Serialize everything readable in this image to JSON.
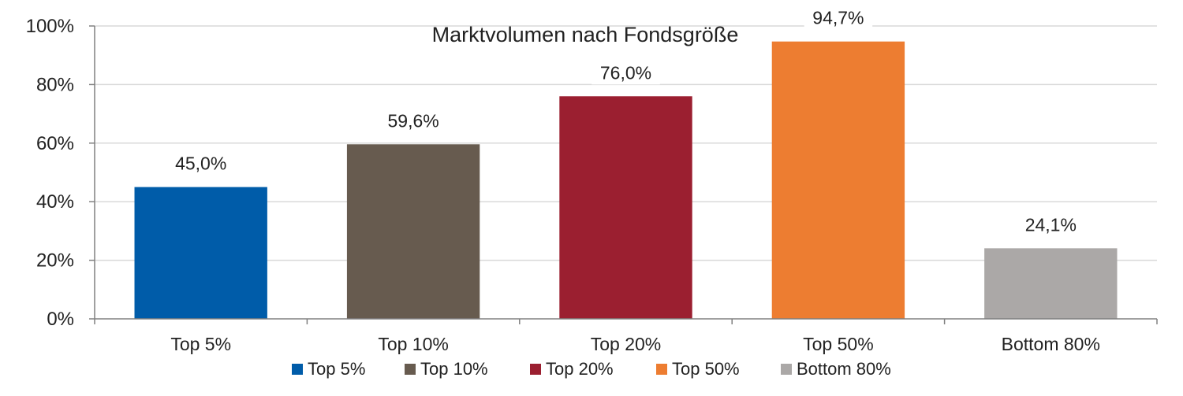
{
  "chart_data": {
    "type": "bar",
    "title": "Marktvolumen nach Fondsgröße",
    "xlabel": "",
    "ylabel": "",
    "categories": [
      "Top 5%",
      "Top 10%",
      "Top 20%",
      "Top 50%",
      "Bottom 80%"
    ],
    "values": [
      45.0,
      59.6,
      76.0,
      94.7,
      24.1
    ],
    "data_labels": [
      "45,0%",
      "59,6%",
      "76,0%",
      "94,7%",
      "24,1%"
    ],
    "colors": [
      "#005ca9",
      "#675b4f",
      "#9b1f30",
      "#ed7d31",
      "#aba8a7"
    ],
    "ylim": [
      0,
      100
    ],
    "yticks": [
      0,
      20,
      40,
      60,
      80,
      100
    ],
    "ytick_labels": [
      "0%",
      "20%",
      "40%",
      "60%",
      "80%",
      "100%"
    ],
    "grid": true,
    "legend": {
      "placement": "bottom",
      "entries": [
        "Top 5%",
        "Top 10%",
        "Top 20%",
        "Top 50%",
        "Bottom 80%"
      ]
    }
  }
}
